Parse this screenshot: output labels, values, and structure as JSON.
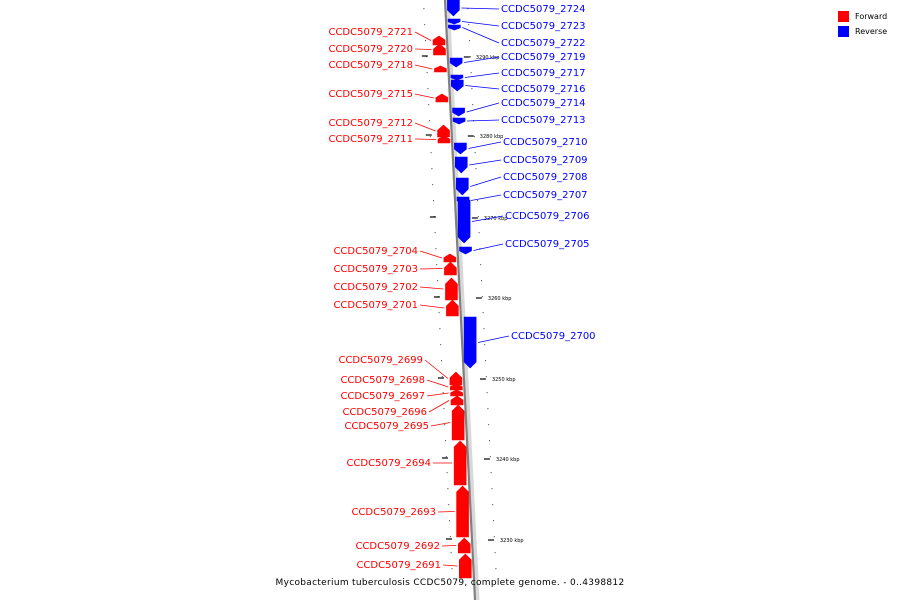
{
  "caption": "Mycobacterium tuberculosis CCDC5079, complete genome. - 0..4398812",
  "legend": [
    {
      "label": "Forward",
      "color": "#ff0000"
    },
    {
      "label": "Reverse",
      "color": "#0000ff"
    }
  ],
  "colors": {
    "forward": "#ff0000",
    "reverse": "#0000ff",
    "backbone": "#808080"
  },
  "ticks": [
    {
      "label": "3290 kbp",
      "kbp": 3290
    },
    {
      "label": "3280 kbp",
      "kbp": 3280
    },
    {
      "label": "3270 kbp",
      "kbp": 3270
    },
    {
      "label": "3260 kbp",
      "kbp": 3260
    },
    {
      "label": "3250 kbp",
      "kbp": 3250
    },
    {
      "label": "3240 kbp",
      "kbp": 3240
    },
    {
      "label": "3230 kbp",
      "kbp": 3230
    }
  ],
  "genes": [
    {
      "name": "CCDC5079_2724",
      "strand": "reverse"
    },
    {
      "name": "CCDC5079_2723",
      "strand": "reverse"
    },
    {
      "name": "CCDC5079_2722",
      "strand": "reverse"
    },
    {
      "name": "CCDC5079_2721",
      "strand": "forward"
    },
    {
      "name": "CCDC5079_2720",
      "strand": "forward"
    },
    {
      "name": "CCDC5079_2719",
      "strand": "reverse"
    },
    {
      "name": "CCDC5079_2718",
      "strand": "forward"
    },
    {
      "name": "CCDC5079_2717",
      "strand": "reverse"
    },
    {
      "name": "CCDC5079_2716",
      "strand": "reverse"
    },
    {
      "name": "CCDC5079_2715",
      "strand": "forward"
    },
    {
      "name": "CCDC5079_2714",
      "strand": "reverse"
    },
    {
      "name": "CCDC5079_2713",
      "strand": "reverse"
    },
    {
      "name": "CCDC5079_2712",
      "strand": "forward"
    },
    {
      "name": "CCDC5079_2711",
      "strand": "forward"
    },
    {
      "name": "CCDC5079_2710",
      "strand": "reverse"
    },
    {
      "name": "CCDC5079_2709",
      "strand": "reverse"
    },
    {
      "name": "CCDC5079_2708",
      "strand": "reverse"
    },
    {
      "name": "CCDC5079_2707",
      "strand": "reverse"
    },
    {
      "name": "CCDC5079_2706",
      "strand": "reverse"
    },
    {
      "name": "CCDC5079_2705",
      "strand": "reverse"
    },
    {
      "name": "CCDC5079_2704",
      "strand": "forward"
    },
    {
      "name": "CCDC5079_2703",
      "strand": "forward"
    },
    {
      "name": "CCDC5079_2702",
      "strand": "forward"
    },
    {
      "name": "CCDC5079_2701",
      "strand": "forward"
    },
    {
      "name": "CCDC5079_2700",
      "strand": "reverse"
    },
    {
      "name": "CCDC5079_2699",
      "strand": "forward"
    },
    {
      "name": "CCDC5079_2698",
      "strand": "forward"
    },
    {
      "name": "CCDC5079_2697",
      "strand": "forward"
    },
    {
      "name": "CCDC5079_2696",
      "strand": "forward"
    },
    {
      "name": "CCDC5079_2695",
      "strand": "forward"
    },
    {
      "name": "CCDC5079_2694",
      "strand": "forward"
    },
    {
      "name": "CCDC5079_2693",
      "strand": "forward"
    },
    {
      "name": "CCDC5079_2692",
      "strand": "forward"
    },
    {
      "name": "CCDC5079_2691",
      "strand": "forward"
    }
  ]
}
